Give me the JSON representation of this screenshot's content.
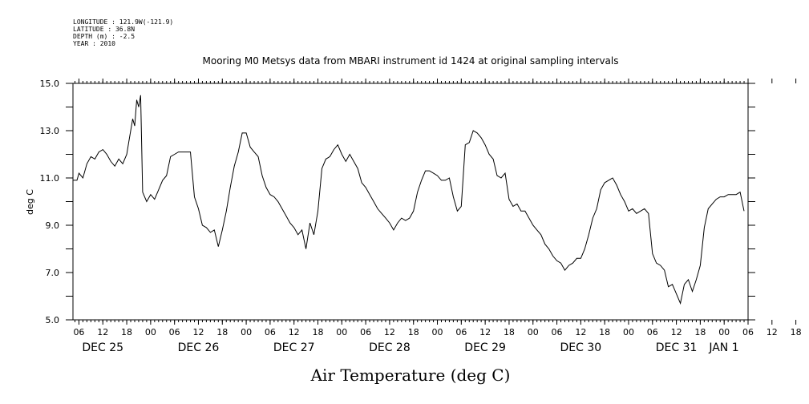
{
  "meta": {
    "longitude": "LONGITUDE : 121.9W(-121.9)",
    "latitude": "LATITUDE : 36.8N",
    "depth": "DEPTH (m) : -2.5",
    "year": "YEAR : 2010"
  },
  "chart_data": {
    "type": "line",
    "title": "Mooring M0 Metsys data from MBARI instrument id 1424 at original sampling intervals",
    "xlabel": "Air Temperature (deg C)",
    "ylabel": "deg C",
    "ylim": [
      5.0,
      15.0
    ],
    "yticks": [
      "5.0",
      "7.0",
      "9.0",
      "11.0",
      "13.0",
      "15.0"
    ],
    "x_unit": "hours since DEC 25 00:00",
    "xlim": [
      4.5,
      174
    ],
    "hour_tick_labels": [
      "06",
      "12",
      "18",
      "00",
      "06",
      "12",
      "18",
      "00",
      "06",
      "12",
      "18",
      "00",
      "06",
      "12",
      "18",
      "00",
      "06",
      "12",
      "18",
      "00",
      "06",
      "12",
      "18",
      "00",
      "06",
      "12",
      "18",
      "00",
      "06",
      "12",
      "18",
      "00",
      "06"
    ],
    "day_labels": [
      "DEC 25",
      "DEC 26",
      "DEC 27",
      "DEC 28",
      "DEC 29",
      "DEC 30",
      "DEC 31",
      "JAN 1"
    ],
    "grid": false,
    "line_color": "#000000",
    "series": [
      {
        "x": [
          4.5,
          5.5,
          6,
          7,
          8,
          9,
          10,
          11,
          12,
          13,
          14,
          15,
          16,
          17,
          18,
          18.5,
          19,
          19.5,
          20,
          20.5,
          21,
          21.5,
          22,
          23,
          24,
          25,
          26,
          27,
          28,
          29,
          30,
          31,
          32,
          33,
          34,
          35,
          36,
          37,
          38,
          39,
          40,
          41,
          42,
          43,
          44,
          45,
          46,
          47,
          48,
          49,
          50,
          51,
          52,
          53,
          54,
          55,
          56,
          57,
          58,
          59,
          60,
          61,
          62,
          63,
          64,
          65,
          66,
          67,
          68,
          69,
          70,
          71,
          72,
          73,
          74,
          75,
          76,
          77,
          78,
          79,
          80,
          81,
          82,
          83,
          84,
          85,
          86,
          87,
          88,
          89,
          90,
          91,
          92,
          93,
          94,
          95,
          96,
          97,
          98,
          99,
          100,
          101,
          102,
          103,
          104,
          105,
          106,
          107,
          108,
          109,
          110,
          111,
          112,
          113,
          114,
          115,
          116,
          117,
          118,
          119,
          120,
          121,
          122,
          123,
          124,
          125,
          126,
          127,
          128,
          129,
          130,
          131,
          132,
          133,
          134,
          135,
          136,
          137,
          138,
          139,
          140,
          141,
          142,
          143,
          144,
          145,
          146,
          147,
          148,
          149,
          150,
          151,
          152,
          153,
          154,
          155,
          156,
          157,
          158,
          159,
          160,
          161,
          162,
          163,
          164,
          165,
          166,
          167,
          168,
          169,
          170,
          171,
          172,
          173
        ],
        "y": [
          10.9,
          10.9,
          11.2,
          11.0,
          11.6,
          11.9,
          11.8,
          12.1,
          12.2,
          12.0,
          11.7,
          11.5,
          11.8,
          11.6,
          12.0,
          12.5,
          13.0,
          13.5,
          13.2,
          14.3,
          14.0,
          14.5,
          10.4,
          10.0,
          10.3,
          10.1,
          10.5,
          10.9,
          11.1,
          11.9,
          12.0,
          12.1,
          12.1,
          12.1,
          12.1,
          10.2,
          9.7,
          9.0,
          8.9,
          8.7,
          8.8,
          8.1,
          8.8,
          9.6,
          10.6,
          11.5,
          12.1,
          12.9,
          12.9,
          12.3,
          12.1,
          11.9,
          11.1,
          10.6,
          10.3,
          10.2,
          10.0,
          9.7,
          9.4,
          9.1,
          8.9,
          8.6,
          8.8,
          8.0,
          9.1,
          8.6,
          9.6,
          11.4,
          11.8,
          11.9,
          12.2,
          12.4,
          12.0,
          11.7,
          12.0,
          11.7,
          11.4,
          10.8,
          10.6,
          10.3,
          10.0,
          9.7,
          9.5,
          9.3,
          9.1,
          8.8,
          9.1,
          9.3,
          9.2,
          9.3,
          9.6,
          10.4,
          10.9,
          11.3,
          11.3,
          11.2,
          11.1,
          10.9,
          10.9,
          11.0,
          10.2,
          9.6,
          9.8,
          12.4,
          12.5,
          13.0,
          12.9,
          12.7,
          12.4,
          12.0,
          11.8,
          11.1,
          11.0,
          11.2,
          10.1,
          9.8,
          9.9,
          9.6,
          9.6,
          9.3,
          9.0,
          8.8,
          8.6,
          8.2,
          8.0,
          7.7,
          7.5,
          7.4,
          7.1,
          7.3,
          7.4,
          7.6,
          7.6,
          8.0,
          8.6,
          9.3,
          9.7,
          10.5,
          10.8,
          10.9,
          11.0,
          10.7,
          10.3,
          10.0,
          9.6,
          9.7,
          9.5,
          9.6,
          9.7,
          9.5,
          7.8,
          7.4,
          7.3,
          7.1,
          6.4,
          6.5,
          6.1,
          5.7,
          6.5,
          6.7,
          6.2,
          6.7,
          7.3,
          8.9,
          9.7,
          9.9,
          10.1,
          10.2,
          10.2,
          10.3,
          10.3,
          10.3,
          10.4,
          9.6
        ]
      }
    ]
  }
}
